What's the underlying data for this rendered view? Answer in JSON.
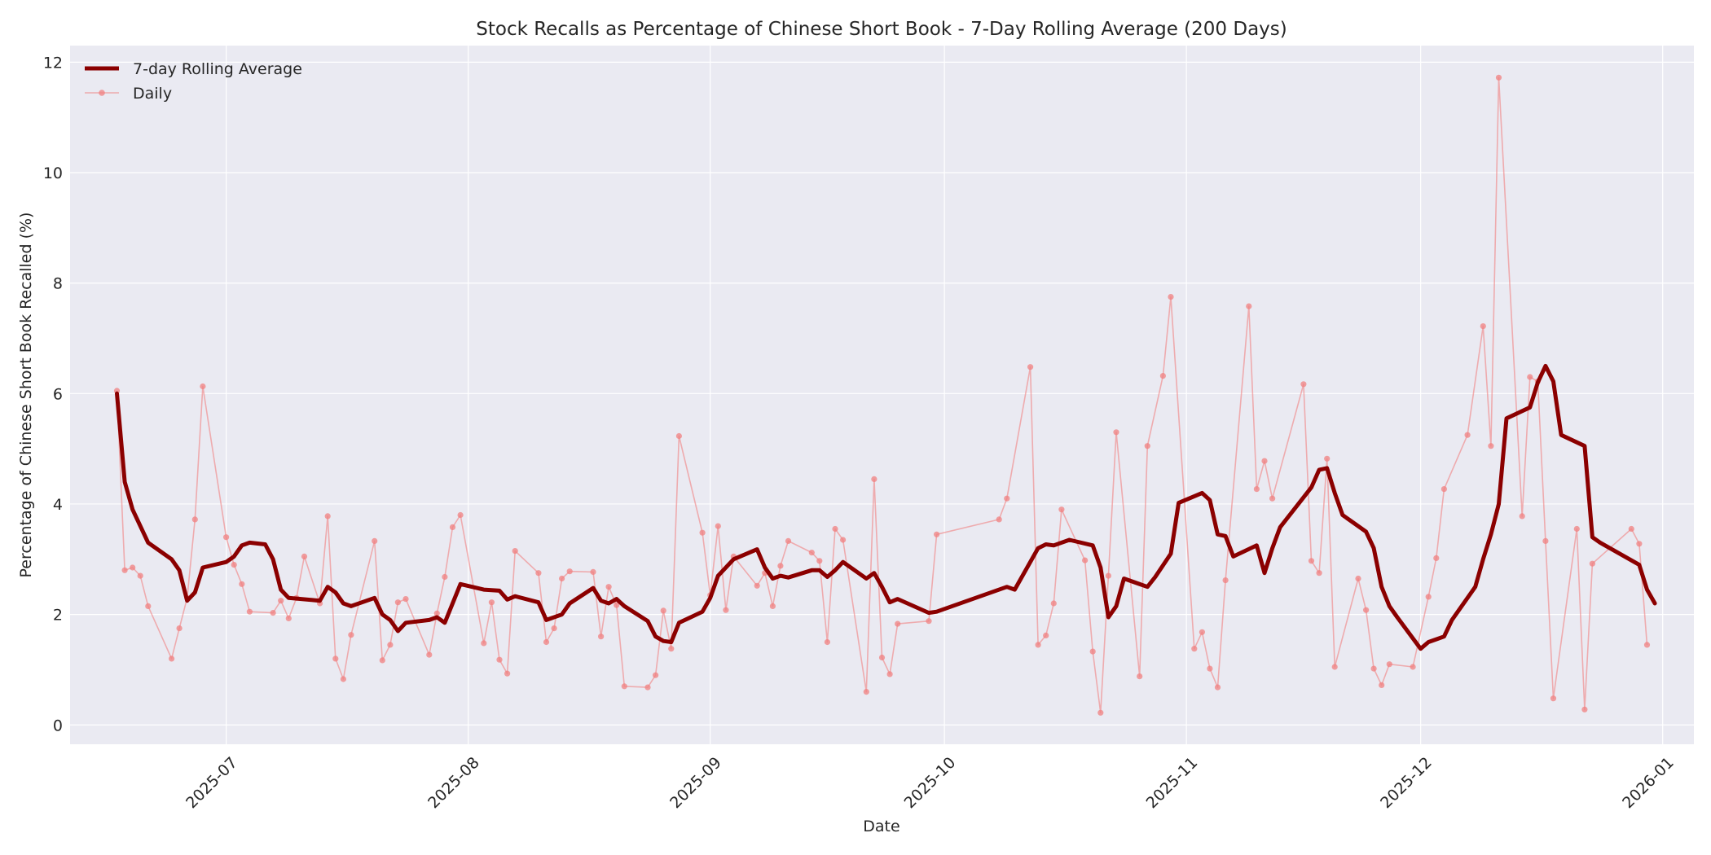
{
  "chart_data": {
    "type": "line",
    "title": "Stock Recalls as Percentage of Chinese Short Book - 7-Day Rolling Average (200 Days)",
    "xlabel": "Date",
    "ylabel": "Percentage of Chinese Short Book Recalled (%)",
    "x_range": [
      "2025-06-11",
      "2026-01-05"
    ],
    "ylim": [
      -0.35,
      12.3
    ],
    "x_ticks": [
      {
        "date": "2025-07-01",
        "label": "2025-07"
      },
      {
        "date": "2025-08-01",
        "label": "2025-08"
      },
      {
        "date": "2025-09-01",
        "label": "2025-09"
      },
      {
        "date": "2025-10-01",
        "label": "2025-10"
      },
      {
        "date": "2025-11-01",
        "label": "2025-11"
      },
      {
        "date": "2025-12-01",
        "label": "2025-12"
      },
      {
        "date": "2026-01-01",
        "label": "2026-01"
      }
    ],
    "y_ticks": [
      0,
      2,
      4,
      6,
      8,
      10,
      12
    ],
    "grid": true,
    "legend_position": "top-left",
    "colors": {
      "rolling": "#8b0000",
      "daily": "#f08080",
      "background": "#eaeaf2",
      "grid": "#ffffff"
    },
    "series": [
      {
        "name": "7-day Rolling Average",
        "style": "thick-line",
        "points": [
          [
            "2025-06-17",
            6.0
          ],
          [
            "2025-06-18",
            4.4
          ],
          [
            "2025-06-19",
            3.9
          ],
          [
            "2025-06-21",
            3.3
          ],
          [
            "2025-06-24",
            3.0
          ],
          [
            "2025-06-25",
            2.8
          ],
          [
            "2025-06-26",
            2.25
          ],
          [
            "2025-06-27",
            2.4
          ],
          [
            "2025-06-28",
            2.85
          ],
          [
            "2025-07-01",
            2.95
          ],
          [
            "2025-07-02",
            3.05
          ],
          [
            "2025-07-03",
            3.25
          ],
          [
            "2025-07-04",
            3.3
          ],
          [
            "2025-07-06",
            3.27
          ],
          [
            "2025-07-07",
            3.0
          ],
          [
            "2025-07-08",
            2.45
          ],
          [
            "2025-07-09",
            2.3
          ],
          [
            "2025-07-13",
            2.25
          ],
          [
            "2025-07-14",
            2.5
          ],
          [
            "2025-07-15",
            2.4
          ],
          [
            "2025-07-16",
            2.2
          ],
          [
            "2025-07-17",
            2.15
          ],
          [
            "2025-07-20",
            2.3
          ],
          [
            "2025-07-21",
            2.0
          ],
          [
            "2025-07-22",
            1.9
          ],
          [
            "2025-07-23",
            1.7
          ],
          [
            "2025-07-24",
            1.85
          ],
          [
            "2025-07-27",
            1.9
          ],
          [
            "2025-07-28",
            1.95
          ],
          [
            "2025-07-29",
            1.85
          ],
          [
            "2025-07-31",
            2.55
          ],
          [
            "2025-08-03",
            2.45
          ],
          [
            "2025-08-05",
            2.43
          ],
          [
            "2025-08-06",
            2.27
          ],
          [
            "2025-08-07",
            2.33
          ],
          [
            "2025-08-10",
            2.22
          ],
          [
            "2025-08-11",
            1.9
          ],
          [
            "2025-08-12",
            1.95
          ],
          [
            "2025-08-13",
            2.0
          ],
          [
            "2025-08-14",
            2.2
          ],
          [
            "2025-08-17",
            2.48
          ],
          [
            "2025-08-18",
            2.25
          ],
          [
            "2025-08-19",
            2.2
          ],
          [
            "2025-08-20",
            2.28
          ],
          [
            "2025-08-21",
            2.15
          ],
          [
            "2025-08-24",
            1.88
          ],
          [
            "2025-08-25",
            1.6
          ],
          [
            "2025-08-26",
            1.52
          ],
          [
            "2025-08-27",
            1.5
          ],
          [
            "2025-08-28",
            1.85
          ],
          [
            "2025-08-31",
            2.05
          ],
          [
            "2025-09-01",
            2.3
          ],
          [
            "2025-09-02",
            2.7
          ],
          [
            "2025-09-04",
            3.0
          ],
          [
            "2025-09-07",
            3.18
          ],
          [
            "2025-09-08",
            2.85
          ],
          [
            "2025-09-09",
            2.65
          ],
          [
            "2025-09-10",
            2.7
          ],
          [
            "2025-09-11",
            2.67
          ],
          [
            "2025-09-14",
            2.8
          ],
          [
            "2025-09-15",
            2.8
          ],
          [
            "2025-09-16",
            2.68
          ],
          [
            "2025-09-17",
            2.8
          ],
          [
            "2025-09-18",
            2.95
          ],
          [
            "2025-09-21",
            2.65
          ],
          [
            "2025-09-22",
            2.75
          ],
          [
            "2025-09-23",
            2.5
          ],
          [
            "2025-09-24",
            2.22
          ],
          [
            "2025-09-25",
            2.28
          ],
          [
            "2025-09-29",
            2.03
          ],
          [
            "2025-09-30",
            2.05
          ],
          [
            "2025-10-09",
            2.5
          ],
          [
            "2025-10-10",
            2.45
          ],
          [
            "2025-10-13",
            3.2
          ],
          [
            "2025-10-14",
            3.27
          ],
          [
            "2025-10-15",
            3.25
          ],
          [
            "2025-10-17",
            3.35
          ],
          [
            "2025-10-20",
            3.25
          ],
          [
            "2025-10-21",
            2.85
          ],
          [
            "2025-10-22",
            1.95
          ],
          [
            "2025-10-23",
            2.15
          ],
          [
            "2025-10-24",
            2.65
          ],
          [
            "2025-10-27",
            2.5
          ],
          [
            "2025-10-28",
            2.68
          ],
          [
            "2025-10-30",
            3.1
          ],
          [
            "2025-10-31",
            4.02
          ],
          [
            "2025-11-03",
            4.2
          ],
          [
            "2025-11-04",
            4.07
          ],
          [
            "2025-11-05",
            3.45
          ],
          [
            "2025-11-06",
            3.42
          ],
          [
            "2025-11-07",
            3.05
          ],
          [
            "2025-11-10",
            3.25
          ],
          [
            "2025-11-11",
            2.75
          ],
          [
            "2025-11-12",
            3.2
          ],
          [
            "2025-11-13",
            3.58
          ],
          [
            "2025-11-17",
            4.3
          ],
          [
            "2025-11-18",
            4.62
          ],
          [
            "2025-11-19",
            4.65
          ],
          [
            "2025-11-20",
            4.2
          ],
          [
            "2025-11-21",
            3.8
          ],
          [
            "2025-11-24",
            3.5
          ],
          [
            "2025-11-25",
            3.2
          ],
          [
            "2025-11-26",
            2.5
          ],
          [
            "2025-11-27",
            2.15
          ],
          [
            "2025-11-28",
            1.95
          ],
          [
            "2025-12-01",
            1.38
          ],
          [
            "2025-12-02",
            1.5
          ],
          [
            "2025-12-03",
            1.55
          ],
          [
            "2025-12-04",
            1.6
          ],
          [
            "2025-12-05",
            1.9
          ],
          [
            "2025-12-08",
            2.5
          ],
          [
            "2025-12-09",
            3.0
          ],
          [
            "2025-12-10",
            3.45
          ],
          [
            "2025-12-11",
            4.0
          ],
          [
            "2025-12-12",
            5.55
          ],
          [
            "2025-12-15",
            5.75
          ],
          [
            "2025-12-16",
            6.2
          ],
          [
            "2025-12-17",
            6.5
          ],
          [
            "2025-12-18",
            6.22
          ],
          [
            "2025-12-19",
            5.25
          ],
          [
            "2025-12-22",
            5.05
          ],
          [
            "2025-12-23",
            3.4
          ],
          [
            "2025-12-24",
            3.3
          ],
          [
            "2025-12-29",
            2.9
          ],
          [
            "2025-12-30",
            2.45
          ],
          [
            "2025-12-31",
            2.2
          ]
        ]
      },
      {
        "name": "Daily",
        "style": "thin-line-with-markers",
        "points": [
          [
            "2025-06-17",
            6.05
          ],
          [
            "2025-06-18",
            2.8
          ],
          [
            "2025-06-19",
            2.85
          ],
          [
            "2025-06-20",
            2.7
          ],
          [
            "2025-06-21",
            2.15
          ],
          [
            "2025-06-24",
            1.2
          ],
          [
            "2025-06-25",
            1.75
          ],
          [
            "2025-06-26",
            2.3
          ],
          [
            "2025-06-27",
            3.72
          ],
          [
            "2025-06-28",
            6.13
          ],
          [
            "2025-07-01",
            3.4
          ],
          [
            "2025-07-02",
            2.9
          ],
          [
            "2025-07-03",
            2.55
          ],
          [
            "2025-07-04",
            2.05
          ],
          [
            "2025-07-07",
            2.03
          ],
          [
            "2025-07-08",
            2.25
          ],
          [
            "2025-07-09",
            1.93
          ],
          [
            "2025-07-10",
            2.3
          ],
          [
            "2025-07-11",
            3.05
          ],
          [
            "2025-07-13",
            2.2
          ],
          [
            "2025-07-14",
            3.78
          ],
          [
            "2025-07-15",
            1.2
          ],
          [
            "2025-07-16",
            0.83
          ],
          [
            "2025-07-17",
            1.63
          ],
          [
            "2025-07-20",
            3.33
          ],
          [
            "2025-07-21",
            1.17
          ],
          [
            "2025-07-22",
            1.45
          ],
          [
            "2025-07-23",
            2.22
          ],
          [
            "2025-07-24",
            2.28
          ],
          [
            "2025-07-27",
            1.27
          ],
          [
            "2025-07-28",
            2.02
          ],
          [
            "2025-07-29",
            2.68
          ],
          [
            "2025-07-30",
            3.58
          ],
          [
            "2025-07-31",
            3.8
          ],
          [
            "2025-08-03",
            1.48
          ],
          [
            "2025-08-04",
            2.22
          ],
          [
            "2025-08-05",
            1.18
          ],
          [
            "2025-08-06",
            0.93
          ],
          [
            "2025-08-07",
            3.15
          ],
          [
            "2025-08-10",
            2.75
          ],
          [
            "2025-08-11",
            1.5
          ],
          [
            "2025-08-12",
            1.75
          ],
          [
            "2025-08-13",
            2.65
          ],
          [
            "2025-08-14",
            2.78
          ],
          [
            "2025-08-17",
            2.77
          ],
          [
            "2025-08-18",
            1.6
          ],
          [
            "2025-08-19",
            2.5
          ],
          [
            "2025-08-20",
            2.17
          ],
          [
            "2025-08-21",
            0.7
          ],
          [
            "2025-08-24",
            0.68
          ],
          [
            "2025-08-25",
            0.9
          ],
          [
            "2025-08-26",
            2.07
          ],
          [
            "2025-08-27",
            1.38
          ],
          [
            "2025-08-28",
            5.23
          ],
          [
            "2025-08-31",
            3.48
          ],
          [
            "2025-09-01",
            2.35
          ],
          [
            "2025-09-02",
            3.6
          ],
          [
            "2025-09-03",
            2.08
          ],
          [
            "2025-09-04",
            3.05
          ],
          [
            "2025-09-07",
            2.52
          ],
          [
            "2025-09-08",
            2.75
          ],
          [
            "2025-09-09",
            2.15
          ],
          [
            "2025-09-10",
            2.88
          ],
          [
            "2025-09-11",
            3.33
          ],
          [
            "2025-09-14",
            3.12
          ],
          [
            "2025-09-15",
            2.97
          ],
          [
            "2025-09-16",
            1.5
          ],
          [
            "2025-09-17",
            3.55
          ],
          [
            "2025-09-18",
            3.35
          ],
          [
            "2025-09-21",
            0.6
          ],
          [
            "2025-09-22",
            4.45
          ],
          [
            "2025-09-23",
            1.22
          ],
          [
            "2025-09-24",
            0.92
          ],
          [
            "2025-09-25",
            1.83
          ],
          [
            "2025-09-29",
            1.88
          ],
          [
            "2025-09-30",
            3.45
          ],
          [
            "2025-10-08",
            3.72
          ],
          [
            "2025-10-09",
            4.1
          ],
          [
            "2025-10-12",
            6.48
          ],
          [
            "2025-10-13",
            1.45
          ],
          [
            "2025-10-14",
            1.62
          ],
          [
            "2025-10-15",
            2.2
          ],
          [
            "2025-10-16",
            3.9
          ],
          [
            "2025-10-19",
            2.98
          ],
          [
            "2025-10-20",
            1.33
          ],
          [
            "2025-10-21",
            0.22
          ],
          [
            "2025-10-22",
            2.7
          ],
          [
            "2025-10-23",
            5.3
          ],
          [
            "2025-10-26",
            0.88
          ],
          [
            "2025-10-27",
            5.05
          ],
          [
            "2025-10-29",
            6.32
          ],
          [
            "2025-10-30",
            7.75
          ],
          [
            "2025-11-02",
            1.38
          ],
          [
            "2025-11-03",
            1.68
          ],
          [
            "2025-11-04",
            1.02
          ],
          [
            "2025-11-05",
            0.68
          ],
          [
            "2025-11-06",
            2.62
          ],
          [
            "2025-11-09",
            7.58
          ],
          [
            "2025-11-10",
            4.27
          ],
          [
            "2025-11-11",
            4.78
          ],
          [
            "2025-11-12",
            4.1
          ],
          [
            "2025-11-16",
            6.17
          ],
          [
            "2025-11-17",
            2.97
          ],
          [
            "2025-11-18",
            2.75
          ],
          [
            "2025-11-19",
            4.82
          ],
          [
            "2025-11-20",
            1.05
          ],
          [
            "2025-11-23",
            2.65
          ],
          [
            "2025-11-24",
            2.08
          ],
          [
            "2025-11-25",
            1.02
          ],
          [
            "2025-11-26",
            0.72
          ],
          [
            "2025-11-27",
            1.1
          ],
          [
            "2025-11-30",
            1.05
          ],
          [
            "2025-12-02",
            2.32
          ],
          [
            "2025-12-03",
            3.02
          ],
          [
            "2025-12-04",
            4.27
          ],
          [
            "2025-12-07",
            5.25
          ],
          [
            "2025-12-09",
            7.22
          ],
          [
            "2025-12-10",
            5.05
          ],
          [
            "2025-12-11",
            11.72
          ],
          [
            "2025-12-14",
            3.78
          ],
          [
            "2025-12-15",
            6.3
          ],
          [
            "2025-12-16",
            6.22
          ],
          [
            "2025-12-17",
            3.33
          ],
          [
            "2025-12-18",
            0.48
          ],
          [
            "2025-12-21",
            3.55
          ],
          [
            "2025-12-22",
            0.28
          ],
          [
            "2025-12-23",
            2.92
          ],
          [
            "2025-12-28",
            3.55
          ],
          [
            "2025-12-29",
            3.28
          ],
          [
            "2025-12-30",
            1.45
          ]
        ]
      }
    ]
  }
}
